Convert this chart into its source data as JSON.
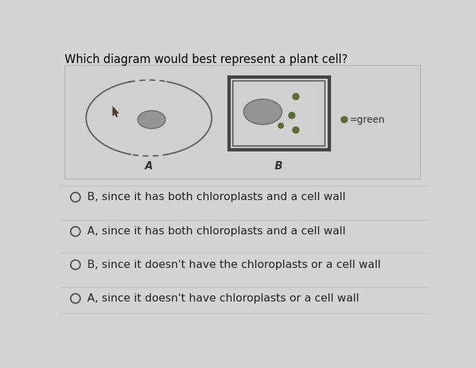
{
  "title": "Which diagram would best represent a plant cell?",
  "title_fontsize": 12,
  "bg_color": "#d4d4d4",
  "panel_bg": "#d0d0d0",
  "panel_border": "#b0b0b0",
  "options": [
    "B, since it has both chloroplasts and a cell wall",
    "A, since it has both chloroplasts and a cell wall",
    "B, since it doesn't have the chloroplasts or a cell wall",
    "A, since it doesn't have chloroplasts or a cell wall"
  ],
  "option_fontsize": 11.5,
  "cell_A_label": "A",
  "cell_B_label": "B",
  "legend_text": "=green",
  "legend_dot_color": "#5a6e30",
  "nucleus_color": "#949494",
  "nucleus_border": "#707070",
  "cell_wall_color": "#555555",
  "cell_membrane_color": "#606060",
  "chloroplast_dot_color": "#5a6e30",
  "cursor_color": "#5a3a2a",
  "option_divider_color": "#c0c0c0",
  "radio_color": "#555555"
}
